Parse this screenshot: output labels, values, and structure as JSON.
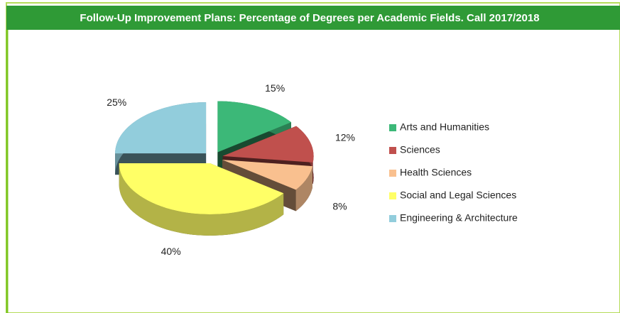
{
  "chart_data": {
    "type": "pie3d",
    "title": "Follow-Up Improvement Plans: Percentage of Degrees per Academic Fields. Call 2017/2018",
    "categories": [
      "Arts and Humanities",
      "Sciences",
      "Health Sciences",
      "Social and  Legal Sciences",
      "Engineering & Architecture"
    ],
    "values": [
      15,
      12,
      8,
      40,
      25
    ],
    "value_labels": [
      "15%",
      "12%",
      "8%",
      "40%",
      "25%"
    ],
    "colors": [
      "#3cb878",
      "#c0504d",
      "#f9c08f",
      "#ffff66",
      "#92cddc"
    ],
    "legend": "right"
  }
}
